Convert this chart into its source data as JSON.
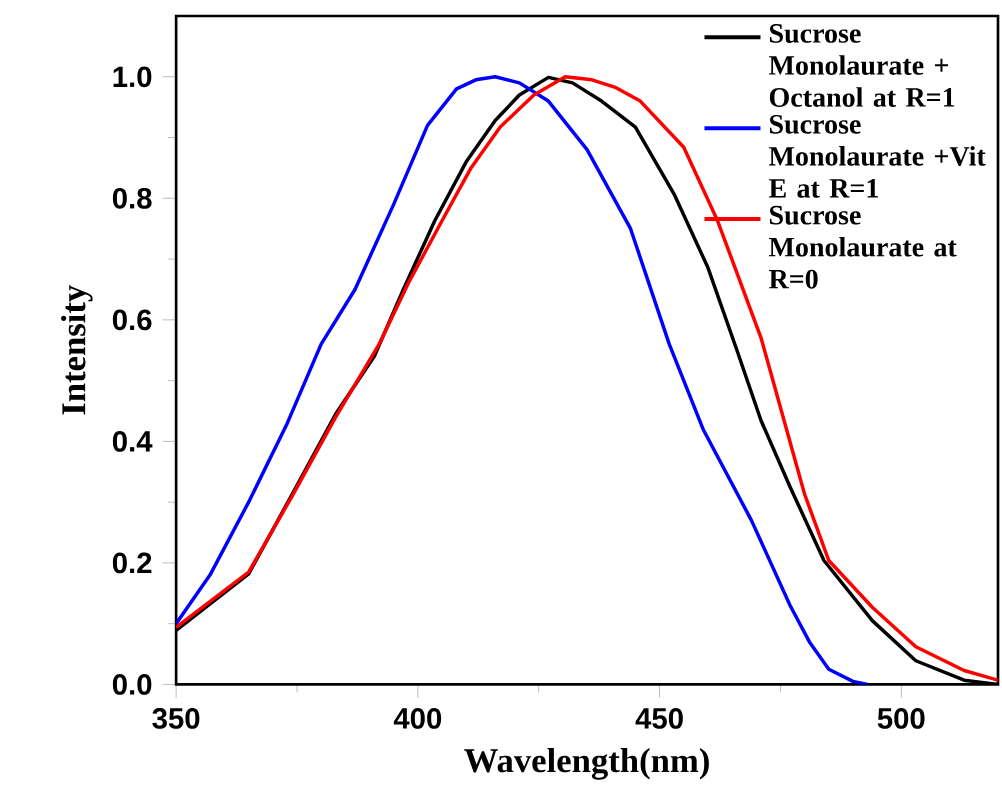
{
  "chart_data": {
    "type": "line",
    "xlabel": "Wavelength(nm)",
    "ylabel": "Intensity",
    "xlim": [
      350,
      520
    ],
    "ylim": [
      0,
      1.1
    ],
    "xticks": [
      350,
      400,
      450,
      500
    ],
    "yticks": [
      {
        "value": 0,
        "label": "0.0"
      },
      {
        "value": 0.2,
        "label": "0.2"
      },
      {
        "value": 0.4,
        "label": "0.4"
      },
      {
        "value": 0.6,
        "label": "0.6"
      },
      {
        "value": 0.8,
        "label": "0.8"
      },
      {
        "value": 1.0,
        "label": "1.0"
      }
    ],
    "legend": "top right",
    "grid": false,
    "marker": "none",
    "line_style": "solid",
    "series": [
      {
        "name": "Sucrose Monolaurate + Octanol at R=1",
        "color": "#000000",
        "x": [
          350,
          365,
          374,
          383,
          391,
          397,
          403.5,
          410,
          416,
          421,
          427,
          432,
          438,
          445,
          453,
          460,
          466,
          471,
          477,
          484,
          494,
          503,
          513,
          520
        ],
        "values": [
          0.089,
          0.182,
          0.313,
          0.445,
          0.54,
          0.65,
          0.763,
          0.86,
          0.928,
          0.97,
          0.999,
          0.99,
          0.96,
          0.917,
          0.807,
          0.686,
          0.55,
          0.434,
          0.325,
          0.204,
          0.105,
          0.039,
          0.007,
          0.0
        ]
      },
      {
        "name": "Sucrose Monolaurate +Vit E at R=1",
        "color": "#0000ff",
        "x": [
          350,
          357,
          365,
          373,
          380,
          387,
          395,
          402,
          408,
          412,
          416,
          421,
          427,
          435,
          444,
          452,
          459,
          469,
          477,
          481,
          485,
          490,
          493
        ],
        "values": [
          0.1,
          0.18,
          0.3,
          0.43,
          0.56,
          0.65,
          0.79,
          0.92,
          0.98,
          0.995,
          1.0,
          0.99,
          0.96,
          0.88,
          0.75,
          0.56,
          0.42,
          0.27,
          0.13,
          0.07,
          0.025,
          0.005,
          0.0
        ]
      },
      {
        "name": "Sucrose Monolaurate at R=0",
        "color": "#ff0000",
        "x": [
          350,
          365,
          374,
          383,
          392,
          398,
          405,
          411,
          417,
          424,
          430.5,
          436,
          441,
          446,
          455,
          462,
          471,
          480,
          485,
          494,
          503,
          513,
          520
        ],
        "values": [
          0.094,
          0.185,
          0.31,
          0.44,
          0.56,
          0.66,
          0.763,
          0.85,
          0.917,
          0.97,
          1.0,
          0.995,
          0.982,
          0.96,
          0.884,
          0.763,
          0.57,
          0.313,
          0.204,
          0.127,
          0.062,
          0.023,
          0.007
        ]
      }
    ]
  }
}
